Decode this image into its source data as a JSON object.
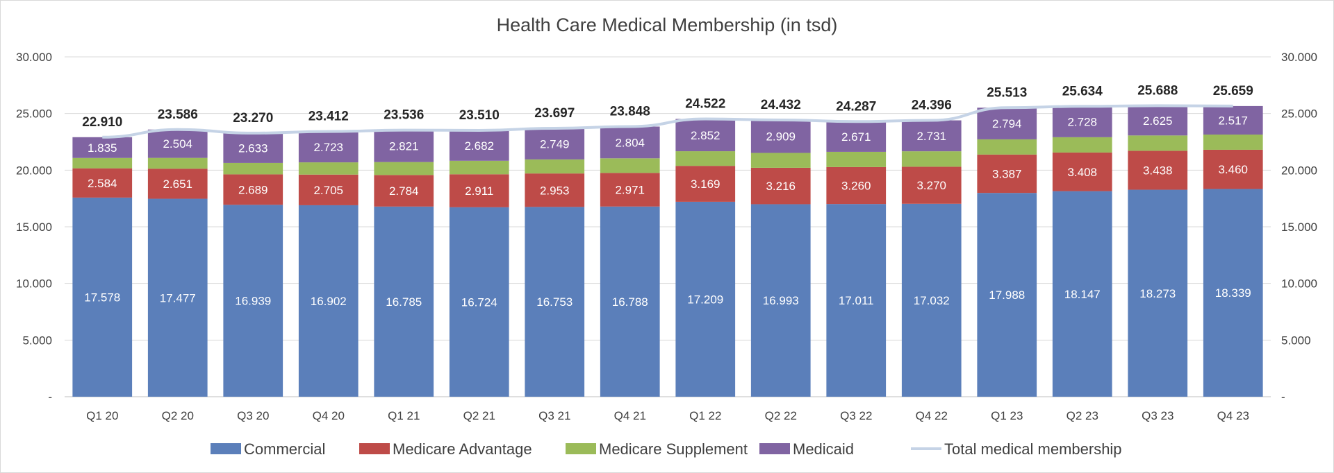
{
  "chart_data": {
    "type": "bar",
    "stacked": true,
    "title": "Health Care Medical Membership (in tsd)",
    "categories": [
      "Q1 20",
      "Q2 20",
      "Q3 20",
      "Q4 20",
      "Q1 21",
      "Q2 21",
      "Q3 21",
      "Q4 21",
      "Q1 22",
      "Q2 22",
      "Q3 22",
      "Q4 22",
      "Q1 23",
      "Q2 23",
      "Q3 23",
      "Q4 23"
    ],
    "series": [
      {
        "name": "Commercial",
        "color": "#5b7fba",
        "values": [
          17578,
          17477,
          16939,
          16902,
          16785,
          16724,
          16753,
          16788,
          17209,
          16993,
          17011,
          17032,
          17988,
          18147,
          18273,
          18339
        ],
        "labels": [
          "17.578",
          "17.477",
          "16.939",
          "16.902",
          "16.785",
          "16.724",
          "16.753",
          "16.788",
          "17.209",
          "16.993",
          "17.011",
          "17.032",
          "17.988",
          "18.147",
          "18.273",
          "18.339"
        ]
      },
      {
        "name": "Medicare Advantage",
        "color": "#be4b48",
        "values": [
          2584,
          2651,
          2689,
          2705,
          2784,
          2911,
          2953,
          2971,
          3169,
          3216,
          3260,
          3270,
          3387,
          3408,
          3438,
          3460
        ],
        "labels": [
          "2.584",
          "2.651",
          "2.689",
          "2.705",
          "2.784",
          "2.911",
          "2.953",
          "2.971",
          "3.169",
          "3.216",
          "3.260",
          "3.270",
          "3.387",
          "3.408",
          "3.438",
          "3.460"
        ]
      },
      {
        "name": "Medicare Supplement",
        "color": "#9bbb59",
        "values": [
          913,
          954,
          1009,
          1082,
          1146,
          1193,
          1242,
          1285,
          1292,
          1314,
          1345,
          1363,
          1344,
          1351,
          1352,
          1343
        ],
        "labels": []
      },
      {
        "name": "Medicaid",
        "color": "#8064a2",
        "values": [
          1835,
          2504,
          2633,
          2723,
          2821,
          2682,
          2749,
          2804,
          2852,
          2909,
          2671,
          2731,
          2794,
          2728,
          2625,
          2517
        ],
        "labels": [
          "1.835",
          "2.504",
          "2.633",
          "2.723",
          "2.821",
          "2.682",
          "2.749",
          "2.804",
          "2.852",
          "2.909",
          "2.671",
          "2.731",
          "2.794",
          "2.728",
          "2.625",
          "2.517"
        ]
      }
    ],
    "line_series": {
      "name": "Total medical membership",
      "color": "#c5d3e6",
      "values": [
        22910,
        23586,
        23270,
        23412,
        23536,
        23510,
        23697,
        23848,
        24522,
        24432,
        24287,
        24396,
        25513,
        25634,
        25688,
        25659
      ],
      "labels": [
        "22.910",
        "23.586",
        "23.270",
        "23.412",
        "23.536",
        "23.510",
        "23.697",
        "23.848",
        "24.522",
        "24.432",
        "24.287",
        "24.396",
        "25.513",
        "25.634",
        "25.688",
        "25.659"
      ]
    },
    "y_axis": {
      "min": 0,
      "max": 30000,
      "ticks": [
        0,
        5000,
        10000,
        15000,
        20000,
        25000,
        30000
      ],
      "tick_labels": [
        "-",
        "5.000",
        "10.000",
        "15.000",
        "20.000",
        "25.000",
        "30.000"
      ],
      "secondary": true
    },
    "grid": true,
    "legend_position": "bottom"
  }
}
